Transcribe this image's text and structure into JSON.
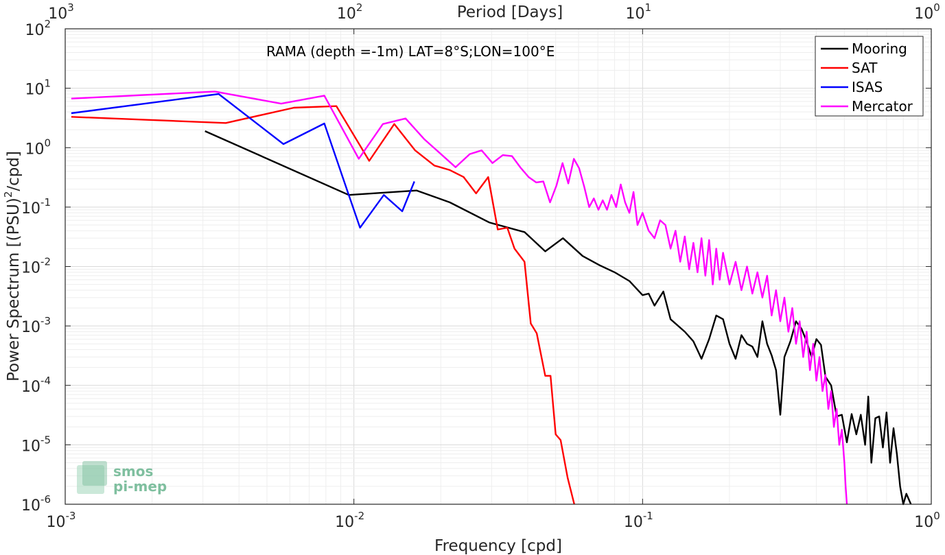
{
  "chart_data": {
    "type": "line",
    "annotation": "RAMA (depth =-1m) LAT=8°S;LON=100°E",
    "xlabel": "Frequency [cpd]",
    "ylabel": "Power Spectrum [(PSU)^2/cpd]",
    "ylabel_parts": {
      "main": "Power Spectrum [(PSU)",
      "sup": "2",
      "tail": "/cpd]"
    },
    "top_xlabel": "Period [Days]",
    "xscale": "log",
    "yscale": "log",
    "xlim": [
      0.001,
      1
    ],
    "ylim": [
      1e-06,
      100
    ],
    "grid": true,
    "minor_grid": true,
    "legend_location": "top-right",
    "x_ticks": [
      {
        "base": "10",
        "exp": "-3"
      },
      {
        "base": "10",
        "exp": "-2"
      },
      {
        "base": "10",
        "exp": "-1"
      },
      {
        "base": "10",
        "exp": "0"
      }
    ],
    "y_ticks": [
      {
        "base": "10",
        "exp": "-6"
      },
      {
        "base": "10",
        "exp": "-5"
      },
      {
        "base": "10",
        "exp": "-4"
      },
      {
        "base": "10",
        "exp": "-3"
      },
      {
        "base": "10",
        "exp": "-2"
      },
      {
        "base": "10",
        "exp": "-1"
      },
      {
        "base": "10",
        "exp": "0"
      },
      {
        "base": "10",
        "exp": "1"
      },
      {
        "base": "10",
        "exp": "2"
      }
    ],
    "top_ticks": [
      {
        "base": "10",
        "exp": "3"
      },
      {
        "base": "10",
        "exp": "2"
      },
      {
        "base": "10",
        "exp": "1"
      },
      {
        "base": "10",
        "exp": "0"
      }
    ],
    "series": [
      {
        "name": "Mooring",
        "color": "#000000",
        "points": [
          [
            0.00305,
            1.9
          ],
          [
            0.0096,
            0.16
          ],
          [
            0.0165,
            0.19
          ],
          [
            0.0215,
            0.12
          ],
          [
            0.0295,
            0.055
          ],
          [
            0.039,
            0.038
          ],
          [
            0.046,
            0.018
          ],
          [
            0.053,
            0.03
          ],
          [
            0.062,
            0.015
          ],
          [
            0.071,
            0.0105
          ],
          [
            0.08,
            0.008
          ],
          [
            0.09,
            0.0057
          ],
          [
            0.1,
            0.0033
          ],
          [
            0.105,
            0.0035
          ],
          [
            0.11,
            0.0022
          ],
          [
            0.118,
            0.0038
          ],
          [
            0.125,
            0.0013
          ],
          [
            0.14,
            0.0008
          ],
          [
            0.15,
            0.00055
          ],
          [
            0.16,
            0.00028
          ],
          [
            0.17,
            0.0006
          ],
          [
            0.18,
            0.0015
          ],
          [
            0.19,
            0.0013
          ],
          [
            0.2,
            0.0005
          ],
          [
            0.21,
            0.00028
          ],
          [
            0.22,
            0.0007
          ],
          [
            0.23,
            0.0005
          ],
          [
            0.24,
            0.00045
          ],
          [
            0.25,
            0.0003
          ],
          [
            0.26,
            0.0012
          ],
          [
            0.27,
            0.0005
          ],
          [
            0.28,
            0.00032
          ],
          [
            0.29,
            0.00018
          ],
          [
            0.3,
            3.2e-05
          ],
          [
            0.31,
            0.0003
          ],
          [
            0.325,
            0.00055
          ],
          [
            0.34,
            0.0012
          ],
          [
            0.355,
            0.0009
          ],
          [
            0.37,
            0.00055
          ],
          [
            0.385,
            0.0003
          ],
          [
            0.4,
            0.0006
          ],
          [
            0.415,
            0.00048
          ],
          [
            0.43,
            0.00014
          ],
          [
            0.45,
            0.0001
          ],
          [
            0.47,
            3e-05
          ],
          [
            0.49,
            3.2e-05
          ],
          [
            0.51,
            1.1e-05
          ],
          [
            0.53,
            3.3e-05
          ],
          [
            0.55,
            1.5e-05
          ],
          [
            0.57,
            3.2e-05
          ],
          [
            0.59,
            1e-05
          ],
          [
            0.605,
            6.5e-05
          ],
          [
            0.62,
            5e-06
          ],
          [
            0.64,
            2.8e-05
          ],
          [
            0.66,
            3e-05
          ],
          [
            0.68,
            9e-06
          ],
          [
            0.7,
            3.5e-05
          ],
          [
            0.72,
            5e-06
          ],
          [
            0.74,
            1.9e-05
          ],
          [
            0.76,
            7e-06
          ],
          [
            0.78,
            2e-06
          ],
          [
            0.8,
            9e-07
          ],
          [
            0.82,
            1.5e-06
          ],
          [
            0.85,
            8e-07
          ]
        ]
      },
      {
        "name": "SAT",
        "color": "#ff0000",
        "points": [
          [
            0.00105,
            3.3
          ],
          [
            0.0036,
            2.6
          ],
          [
            0.0062,
            4.7
          ],
          [
            0.0087,
            5.0
          ],
          [
            0.0113,
            0.6
          ],
          [
            0.0138,
            2.5
          ],
          [
            0.0163,
            0.9
          ],
          [
            0.019,
            0.5
          ],
          [
            0.0215,
            0.42
          ],
          [
            0.024,
            0.32
          ],
          [
            0.0265,
            0.17
          ],
          [
            0.0292,
            0.32
          ],
          [
            0.0315,
            0.042
          ],
          [
            0.034,
            0.045
          ],
          [
            0.036,
            0.02
          ],
          [
            0.039,
            0.012
          ],
          [
            0.041,
            0.0011
          ],
          [
            0.043,
            0.00075
          ],
          [
            0.046,
            0.000145
          ],
          [
            0.048,
            0.000145
          ],
          [
            0.05,
            1.5e-05
          ],
          [
            0.052,
            1.2e-05
          ],
          [
            0.055,
            2.8e-06
          ],
          [
            0.058,
            8e-07
          ]
        ]
      },
      {
        "name": "ISAS",
        "color": "#0000ff",
        "points": [
          [
            0.00105,
            3.8
          ],
          [
            0.0034,
            8.0
          ],
          [
            0.0057,
            1.15
          ],
          [
            0.0079,
            2.55
          ],
          [
            0.0096,
            0.16
          ],
          [
            0.0105,
            0.045
          ],
          [
            0.0127,
            0.16
          ],
          [
            0.0147,
            0.085
          ],
          [
            0.0162,
            0.27
          ]
        ]
      },
      {
        "name": "Mercator",
        "color": "#ff00ff",
        "points": [
          [
            0.00105,
            6.7
          ],
          [
            0.0033,
            8.8
          ],
          [
            0.0056,
            5.5
          ],
          [
            0.0079,
            7.5
          ],
          [
            0.0104,
            0.65
          ],
          [
            0.0126,
            2.5
          ],
          [
            0.0151,
            3.1
          ],
          [
            0.0175,
            1.4
          ],
          [
            0.0225,
            0.47
          ],
          [
            0.0252,
            0.78
          ],
          [
            0.0277,
            0.9
          ],
          [
            0.0302,
            0.55
          ],
          [
            0.0328,
            0.75
          ],
          [
            0.0353,
            0.72
          ],
          [
            0.0378,
            0.46
          ],
          [
            0.0403,
            0.32
          ],
          [
            0.0428,
            0.26
          ],
          [
            0.0453,
            0.27
          ],
          [
            0.0478,
            0.12
          ],
          [
            0.0503,
            0.23
          ],
          [
            0.0528,
            0.55
          ],
          [
            0.0553,
            0.25
          ],
          [
            0.0578,
            0.65
          ],
          [
            0.0603,
            0.45
          ],
          [
            0.0628,
            0.22
          ],
          [
            0.0653,
            0.1
          ],
          [
            0.0678,
            0.14
          ],
          [
            0.0703,
            0.09
          ],
          [
            0.0728,
            0.13
          ],
          [
            0.0753,
            0.09
          ],
          [
            0.078,
            0.16
          ],
          [
            0.081,
            0.1
          ],
          [
            0.084,
            0.24
          ],
          [
            0.087,
            0.12
          ],
          [
            0.09,
            0.08
          ],
          [
            0.093,
            0.18
          ],
          [
            0.096,
            0.05
          ],
          [
            0.1,
            0.08
          ],
          [
            0.105,
            0.04
          ],
          [
            0.11,
            0.03
          ],
          [
            0.115,
            0.06
          ],
          [
            0.12,
            0.05
          ],
          [
            0.125,
            0.02
          ],
          [
            0.13,
            0.04
          ],
          [
            0.135,
            0.012
          ],
          [
            0.14,
            0.032
          ],
          [
            0.145,
            0.009
          ],
          [
            0.15,
            0.025
          ],
          [
            0.155,
            0.008
          ],
          [
            0.16,
            0.03
          ],
          [
            0.165,
            0.007
          ],
          [
            0.17,
            0.028
          ],
          [
            0.175,
            0.005
          ],
          [
            0.18,
            0.02
          ],
          [
            0.185,
            0.006
          ],
          [
            0.19,
            0.017
          ],
          [
            0.2,
            0.005
          ],
          [
            0.21,
            0.012
          ],
          [
            0.22,
            0.004
          ],
          [
            0.23,
            0.01
          ],
          [
            0.24,
            0.0035
          ],
          [
            0.25,
            0.008
          ],
          [
            0.26,
            0.003
          ],
          [
            0.27,
            0.007
          ],
          [
            0.28,
            0.0015
          ],
          [
            0.29,
            0.004
          ],
          [
            0.3,
            0.0012
          ],
          [
            0.31,
            0.003
          ],
          [
            0.32,
            0.0008
          ],
          [
            0.33,
            0.002
          ],
          [
            0.34,
            0.0005
          ],
          [
            0.35,
            0.0012
          ],
          [
            0.36,
            0.0003
          ],
          [
            0.37,
            0.0008
          ],
          [
            0.38,
            0.00018
          ],
          [
            0.39,
            0.0005
          ],
          [
            0.4,
            0.00012
          ],
          [
            0.41,
            0.0003
          ],
          [
            0.42,
            8e-05
          ],
          [
            0.43,
            0.00015
          ],
          [
            0.44,
            4e-05
          ],
          [
            0.45,
            8e-05
          ],
          [
            0.46,
            2e-05
          ],
          [
            0.47,
            4e-05
          ],
          [
            0.48,
            1e-05
          ],
          [
            0.49,
            1.8e-05
          ],
          [
            0.5,
            5e-06
          ],
          [
            0.505,
            2e-06
          ],
          [
            0.51,
            9e-07
          ]
        ]
      }
    ]
  },
  "logo": {
    "line1": "smos",
    "line2": "pi-mep"
  }
}
